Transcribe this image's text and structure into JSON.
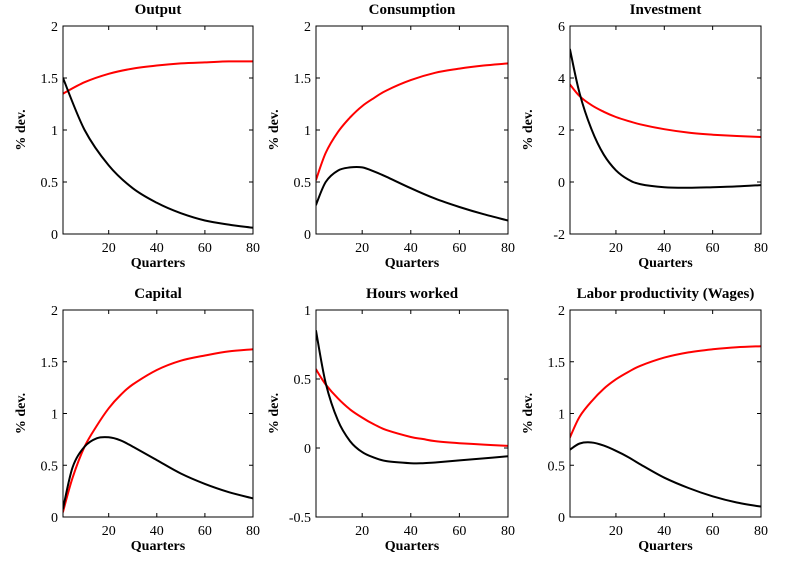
{
  "figure": {
    "colors": {
      "red_series": "#ff0000",
      "black_series": "#000000",
      "axes": "#000000",
      "background": "#ffffff"
    }
  },
  "chart_data": [
    {
      "type": "line",
      "title": "Output",
      "xlabel": "Quarters",
      "ylabel": "% dev.",
      "xlim": [
        1,
        80
      ],
      "ylim": [
        0,
        2
      ],
      "xticks": [
        20,
        40,
        60,
        80
      ],
      "yticks": [
        0,
        0.5,
        1,
        1.5,
        2
      ],
      "x": [
        1,
        10,
        20,
        30,
        40,
        50,
        60,
        70,
        80
      ],
      "series": [
        {
          "color": "#ff0000",
          "values": [
            1.35,
            1.46,
            1.54,
            1.59,
            1.62,
            1.64,
            1.65,
            1.66,
            1.66
          ]
        },
        {
          "color": "#000000",
          "values": [
            1.5,
            1.0,
            0.66,
            0.44,
            0.3,
            0.2,
            0.13,
            0.09,
            0.06
          ]
        }
      ]
    },
    {
      "type": "line",
      "title": "Consumption",
      "xlabel": "Quarters",
      "ylabel": "% dev.",
      "xlim": [
        1,
        80
      ],
      "ylim": [
        0,
        2
      ],
      "xticks": [
        20,
        40,
        60,
        80
      ],
      "yticks": [
        0,
        0.5,
        1,
        1.5,
        2
      ],
      "x": [
        1,
        5,
        10,
        15,
        20,
        25,
        30,
        40,
        50,
        60,
        70,
        80
      ],
      "series": [
        {
          "color": "#ff0000",
          "values": [
            0.52,
            0.78,
            0.98,
            1.12,
            1.23,
            1.31,
            1.38,
            1.48,
            1.55,
            1.59,
            1.62,
            1.64
          ]
        },
        {
          "color": "#000000",
          "values": [
            0.28,
            0.5,
            0.61,
            0.64,
            0.64,
            0.6,
            0.55,
            0.44,
            0.34,
            0.26,
            0.19,
            0.13
          ]
        }
      ]
    },
    {
      "type": "line",
      "title": "Investment",
      "xlabel": "Quarters",
      "ylabel": "% dev.",
      "xlim": [
        1,
        80
      ],
      "ylim": [
        -2,
        6
      ],
      "xticks": [
        20,
        40,
        60,
        80
      ],
      "yticks": [
        -2,
        0,
        2,
        4,
        6
      ],
      "x": [
        1,
        5,
        10,
        15,
        20,
        25,
        30,
        40,
        50,
        60,
        70,
        80
      ],
      "series": [
        {
          "color": "#ff0000",
          "values": [
            3.75,
            3.3,
            2.95,
            2.7,
            2.5,
            2.35,
            2.22,
            2.03,
            1.9,
            1.82,
            1.77,
            1.73
          ]
        },
        {
          "color": "#000000",
          "values": [
            5.1,
            3.4,
            2.0,
            1.05,
            0.45,
            0.1,
            -0.08,
            -0.2,
            -0.22,
            -0.2,
            -0.17,
            -0.12
          ]
        }
      ]
    },
    {
      "type": "line",
      "title": "Capital",
      "xlabel": "Quarters",
      "ylabel": "% dev.",
      "xlim": [
        1,
        80
      ],
      "ylim": [
        0,
        2
      ],
      "xticks": [
        20,
        40,
        60,
        80
      ],
      "yticks": [
        0,
        0.5,
        1,
        1.5,
        2
      ],
      "x": [
        1,
        5,
        10,
        15,
        20,
        25,
        30,
        40,
        50,
        60,
        70,
        80
      ],
      "series": [
        {
          "color": "#ff0000",
          "values": [
            0.05,
            0.38,
            0.68,
            0.88,
            1.05,
            1.18,
            1.28,
            1.42,
            1.51,
            1.56,
            1.6,
            1.62
          ]
        },
        {
          "color": "#000000",
          "values": [
            0.08,
            0.48,
            0.68,
            0.76,
            0.77,
            0.74,
            0.68,
            0.55,
            0.42,
            0.32,
            0.24,
            0.18
          ]
        }
      ]
    },
    {
      "type": "line",
      "title": "Hours worked",
      "xlabel": "Quarters",
      "ylabel": "% dev.",
      "xlim": [
        1,
        80
      ],
      "ylim": [
        -0.5,
        1
      ],
      "xticks": [
        20,
        40,
        60,
        80
      ],
      "yticks": [
        -0.5,
        0,
        0.5,
        1
      ],
      "x": [
        1,
        5,
        10,
        15,
        20,
        25,
        30,
        40,
        45,
        50,
        60,
        70,
        80
      ],
      "series": [
        {
          "color": "#ff0000",
          "values": [
            0.57,
            0.46,
            0.36,
            0.28,
            0.22,
            0.17,
            0.13,
            0.08,
            0.065,
            0.05,
            0.035,
            0.025,
            0.015
          ]
        },
        {
          "color": "#000000",
          "values": [
            0.85,
            0.47,
            0.2,
            0.05,
            -0.03,
            -0.07,
            -0.095,
            -0.11,
            -0.11,
            -0.105,
            -0.09,
            -0.075,
            -0.06
          ]
        }
      ]
    },
    {
      "type": "line",
      "title": "Labor productivity (Wages)",
      "xlabel": "Quarters",
      "ylabel": "% dev.",
      "xlim": [
        1,
        80
      ],
      "ylim": [
        0,
        2
      ],
      "xticks": [
        20,
        40,
        60,
        80
      ],
      "yticks": [
        0,
        0.5,
        1,
        1.5,
        2
      ],
      "x": [
        1,
        5,
        10,
        15,
        20,
        25,
        30,
        40,
        50,
        60,
        70,
        80
      ],
      "series": [
        {
          "color": "#ff0000",
          "values": [
            0.77,
            0.97,
            1.12,
            1.24,
            1.33,
            1.4,
            1.46,
            1.54,
            1.59,
            1.62,
            1.64,
            1.65
          ]
        },
        {
          "color": "#000000",
          "values": [
            0.65,
            0.71,
            0.72,
            0.69,
            0.64,
            0.58,
            0.51,
            0.38,
            0.28,
            0.2,
            0.14,
            0.1
          ]
        }
      ]
    }
  ]
}
